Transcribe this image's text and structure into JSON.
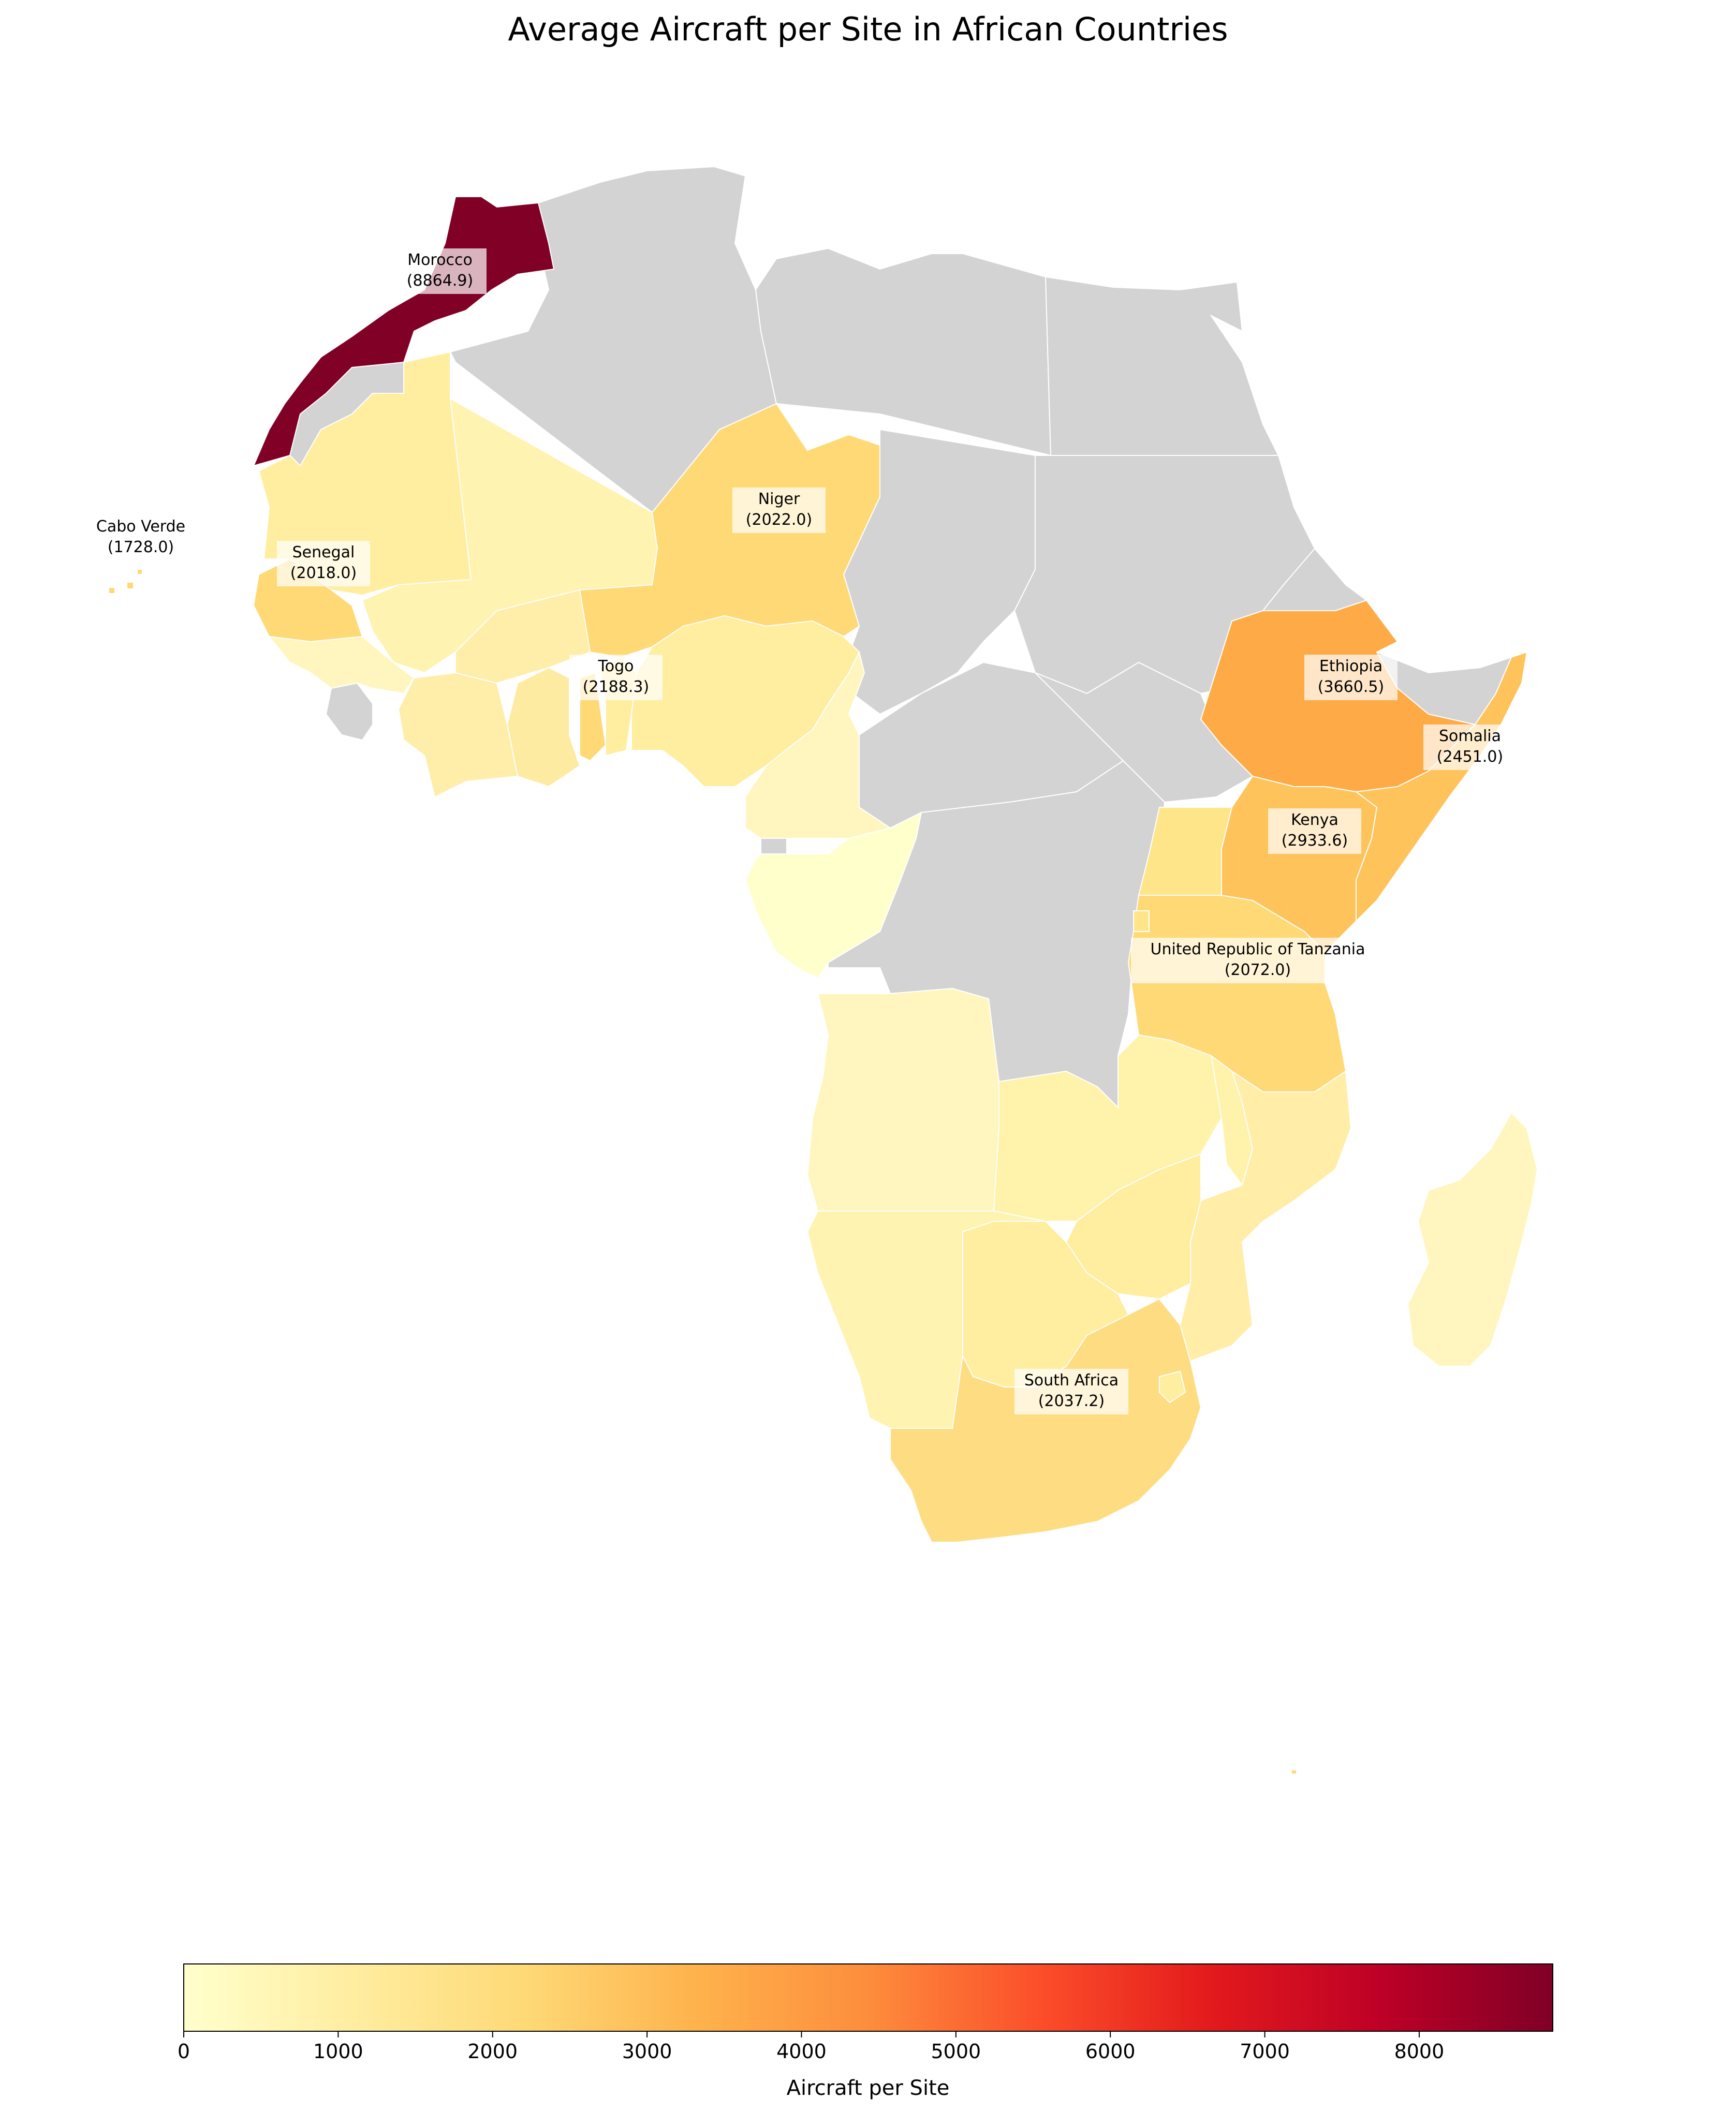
{
  "title": "Average Aircraft per Site in African Countries",
  "colorbar": {
    "label": "Aircraft per Site",
    "min": 0,
    "max": 8864.9,
    "ticks": [
      "0",
      "1000",
      "2000",
      "3000",
      "4000",
      "5000",
      "6000",
      "7000",
      "8000"
    ],
    "tick_values": [
      0,
      1000,
      2000,
      3000,
      4000,
      5000,
      6000,
      7000,
      8000
    ],
    "colormap": "YlOrRd",
    "colors": [
      "#ffffcc",
      "#ffeda0",
      "#fed976",
      "#feb24c",
      "#fd8d3c",
      "#fc4e2a",
      "#e31a1c",
      "#bd0026",
      "#800026"
    ]
  },
  "no_data_color": "#d3d3d3",
  "labels": [
    {
      "name": "Morocco",
      "value": "(8864.9)"
    },
    {
      "name": "Cabo Verde",
      "value": "(1728.0)"
    },
    {
      "name": "Senegal",
      "value": "(2018.0)"
    },
    {
      "name": "Niger",
      "value": "(2022.0)"
    },
    {
      "name": "Togo",
      "value": "(2188.3)"
    },
    {
      "name": "Ethiopia",
      "value": "(3660.5)"
    },
    {
      "name": "Somalia",
      "value": "(2451.0)"
    },
    {
      "name": "Kenya",
      "value": "(2933.6)"
    },
    {
      "name": "United Republic of Tanzania",
      "value": "(2072.0)"
    },
    {
      "name": "South Africa",
      "value": "(2037.2)"
    }
  ],
  "chart_data": {
    "type": "choropleth",
    "title": "Average Aircraft per Site in African Countries",
    "colorbar_label": "Aircraft per Site",
    "range": [
      0,
      8864.9
    ],
    "labeled_values": [
      {
        "country": "Morocco",
        "value": 8864.9
      },
      {
        "country": "Cabo Verde",
        "value": 1728.0
      },
      {
        "country": "Senegal",
        "value": 2018.0
      },
      {
        "country": "Niger",
        "value": 2022.0
      },
      {
        "country": "Togo",
        "value": 2188.3
      },
      {
        "country": "Ethiopia",
        "value": 3660.5
      },
      {
        "country": "Somalia",
        "value": 2451.0
      },
      {
        "country": "Kenya",
        "value": 2933.6
      },
      {
        "country": "United Republic of Tanzania",
        "value": 2072.0
      },
      {
        "country": "South Africa",
        "value": 2037.2
      }
    ]
  }
}
